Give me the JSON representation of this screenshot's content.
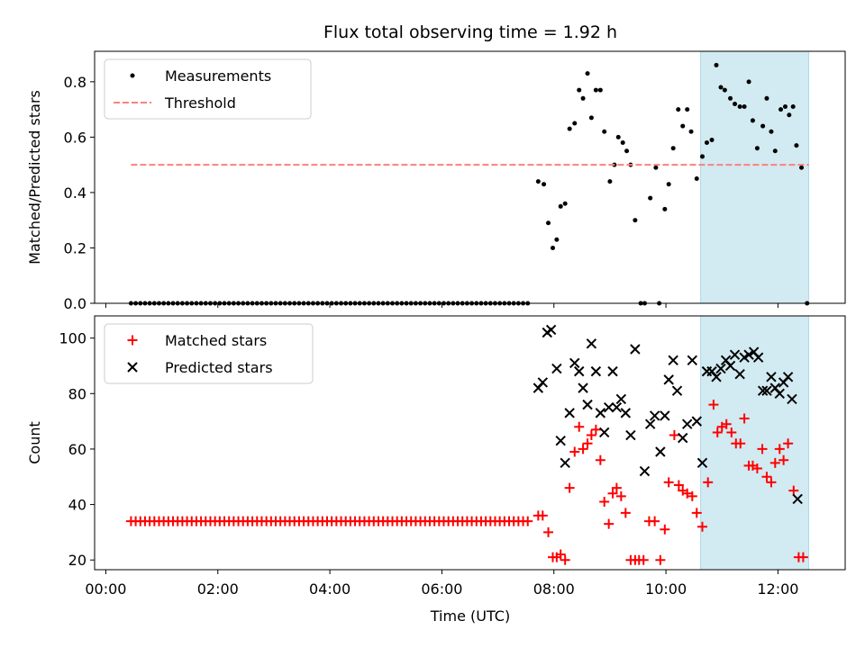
{
  "chart_data": {
    "type": "scatter",
    "title": "Flux total observing time = 1.92 h",
    "xlabel": "Time (UTC)",
    "x_ticks": [
      "00:00",
      "02:00",
      "04:00",
      "06:00",
      "08:00",
      "10:00",
      "12:00"
    ],
    "x_unit": "hours",
    "xlim": [
      -0.2,
      13.2
    ],
    "shaded_interval": {
      "start": 10.62,
      "end": 12.55,
      "color": "#add8e6"
    },
    "panels": [
      {
        "ylabel": "Matched/Predicted stars",
        "ylim": [
          0,
          0.91
        ],
        "y_ticks": [
          "0.0",
          "0.2",
          "0.4",
          "0.6",
          "0.8"
        ],
        "y_tick_values": [
          0,
          0.2,
          0.4,
          0.6,
          0.8
        ],
        "legend": [
          "Measurements",
          "Threshold"
        ],
        "legend_position": "upper-left",
        "series": [
          {
            "name": "Measurements",
            "marker": "dot",
            "color": "#000000",
            "points": [
              [
                7.72,
                0.44
              ],
              [
                7.82,
                0.43
              ],
              [
                7.9,
                0.29
              ],
              [
                7.98,
                0.2
              ],
              [
                8.05,
                0.23
              ],
              [
                8.12,
                0.35
              ],
              [
                8.2,
                0.36
              ],
              [
                8.28,
                0.63
              ],
              [
                8.37,
                0.65
              ],
              [
                8.45,
                0.77
              ],
              [
                8.52,
                0.74
              ],
              [
                8.6,
                0.83
              ],
              [
                8.67,
                0.67
              ],
              [
                8.75,
                0.77
              ],
              [
                8.83,
                0.77
              ],
              [
                8.9,
                0.62
              ],
              [
                9.0,
                0.44
              ],
              [
                9.08,
                0.5
              ],
              [
                9.15,
                0.6
              ],
              [
                9.23,
                0.58
              ],
              [
                9.3,
                0.55
              ],
              [
                9.37,
                0.5
              ],
              [
                9.45,
                0.3
              ],
              [
                9.55,
                0.0
              ],
              [
                9.62,
                0.0
              ],
              [
                9.72,
                0.38
              ],
              [
                9.82,
                0.49
              ],
              [
                9.88,
                0.0
              ],
              [
                9.98,
                0.34
              ],
              [
                10.05,
                0.43
              ],
              [
                10.13,
                0.56
              ],
              [
                10.22,
                0.7
              ],
              [
                10.3,
                0.64
              ],
              [
                10.38,
                0.7
              ],
              [
                10.45,
                0.62
              ],
              [
                10.55,
                0.45
              ],
              [
                10.65,
                0.53
              ],
              [
                10.73,
                0.58
              ],
              [
                10.82,
                0.59
              ],
              [
                10.9,
                0.86
              ],
              [
                10.98,
                0.78
              ],
              [
                11.05,
                0.77
              ],
              [
                11.15,
                0.74
              ],
              [
                11.23,
                0.72
              ],
              [
                11.32,
                0.71
              ],
              [
                11.4,
                0.71
              ],
              [
                11.48,
                0.8
              ],
              [
                11.55,
                0.66
              ],
              [
                11.63,
                0.56
              ],
              [
                11.73,
                0.64
              ],
              [
                11.8,
                0.74
              ],
              [
                11.88,
                0.62
              ],
              [
                11.95,
                0.55
              ],
              [
                12.05,
                0.7
              ],
              [
                12.13,
                0.71
              ],
              [
                12.2,
                0.68
              ],
              [
                12.27,
                0.71
              ],
              [
                12.33,
                0.57
              ],
              [
                12.42,
                0.49
              ],
              [
                12.52,
                0.0
              ]
            ],
            "zero_run": {
              "x_start": 0.45,
              "x_end": 7.6,
              "y": 0.0
            }
          },
          {
            "name": "Threshold",
            "style": "dashed",
            "color": "#ff7f7f",
            "y": 0.5,
            "x_start": 0.45,
            "x_end": 12.55
          }
        ]
      },
      {
        "ylabel": "Count",
        "ylim": [
          16.5,
          108
        ],
        "y_ticks": [
          "20",
          "40",
          "60",
          "80",
          "100"
        ],
        "y_tick_values": [
          20,
          40,
          60,
          80,
          100
        ],
        "legend": [
          "Matched stars",
          "Predicted stars"
        ],
        "legend_position": "upper-left",
        "series": [
          {
            "name": "Matched stars",
            "marker": "plus",
            "color": "#ff0000",
            "constant_run": {
              "x_start": 0.45,
              "x_end": 7.6,
              "y": 34
            },
            "points": [
              [
                7.72,
                36
              ],
              [
                7.8,
                36
              ],
              [
                7.9,
                30
              ],
              [
                7.98,
                21
              ],
              [
                8.05,
                21
              ],
              [
                8.12,
                22
              ],
              [
                8.2,
                20
              ],
              [
                8.28,
                46
              ],
              [
                8.37,
                59
              ],
              [
                8.45,
                68
              ],
              [
                8.52,
                60
              ],
              [
                8.6,
                62
              ],
              [
                8.67,
                65
              ],
              [
                8.75,
                67
              ],
              [
                8.83,
                56
              ],
              [
                8.9,
                41
              ],
              [
                8.98,
                33
              ],
              [
                9.05,
                44
              ],
              [
                9.12,
                46
              ],
              [
                9.2,
                43
              ],
              [
                9.28,
                37
              ],
              [
                9.37,
                20
              ],
              [
                9.45,
                20
              ],
              [
                9.52,
                20
              ],
              [
                9.6,
                20
              ],
              [
                9.7,
                34
              ],
              [
                9.8,
                34
              ],
              [
                9.9,
                20
              ],
              [
                9.98,
                31
              ],
              [
                10.05,
                48
              ],
              [
                10.15,
                65
              ],
              [
                10.23,
                47
              ],
              [
                10.3,
                45
              ],
              [
                10.38,
                44
              ],
              [
                10.47,
                43
              ],
              [
                10.55,
                37
              ],
              [
                10.65,
                32
              ],
              [
                10.75,
                48
              ],
              [
                10.85,
                76
              ],
              [
                10.92,
                66
              ],
              [
                11.0,
                68
              ],
              [
                11.08,
                69
              ],
              [
                11.17,
                66
              ],
              [
                11.25,
                62
              ],
              [
                11.33,
                62
              ],
              [
                11.4,
                71
              ],
              [
                11.48,
                54
              ],
              [
                11.55,
                54
              ],
              [
                11.63,
                53
              ],
              [
                11.72,
                60
              ],
              [
                11.8,
                50
              ],
              [
                11.88,
                48
              ],
              [
                11.95,
                55
              ],
              [
                12.03,
                60
              ],
              [
                12.1,
                56
              ],
              [
                12.18,
                62
              ],
              [
                12.28,
                45
              ],
              [
                12.37,
                21
              ],
              [
                12.45,
                21
              ]
            ]
          },
          {
            "name": "Predicted stars",
            "marker": "x",
            "color": "#000000",
            "points": [
              [
                7.72,
                82
              ],
              [
                7.8,
                84
              ],
              [
                7.88,
                102
              ],
              [
                7.95,
                103
              ],
              [
                8.05,
                89
              ],
              [
                8.12,
                63
              ],
              [
                8.2,
                55
              ],
              [
                8.28,
                73
              ],
              [
                8.37,
                91
              ],
              [
                8.45,
                88
              ],
              [
                8.52,
                82
              ],
              [
                8.6,
                76
              ],
              [
                8.67,
                98
              ],
              [
                8.75,
                88
              ],
              [
                8.83,
                73
              ],
              [
                8.9,
                66
              ],
              [
                8.98,
                75
              ],
              [
                9.05,
                88
              ],
              [
                9.12,
                75
              ],
              [
                9.2,
                78
              ],
              [
                9.28,
                73
              ],
              [
                9.37,
                65
              ],
              [
                9.45,
                96
              ],
              [
                9.62,
                52
              ],
              [
                9.72,
                69
              ],
              [
                9.8,
                72
              ],
              [
                9.9,
                59
              ],
              [
                9.98,
                72
              ],
              [
                10.05,
                85
              ],
              [
                10.13,
                92
              ],
              [
                10.2,
                81
              ],
              [
                10.3,
                64
              ],
              [
                10.38,
                69
              ],
              [
                10.47,
                92
              ],
              [
                10.55,
                70
              ],
              [
                10.65,
                55
              ],
              [
                10.73,
                88
              ],
              [
                10.82,
                88
              ],
              [
                10.9,
                86
              ],
              [
                10.98,
                89
              ],
              [
                11.07,
                92
              ],
              [
                11.15,
                90
              ],
              [
                11.23,
                94
              ],
              [
                11.32,
                87
              ],
              [
                11.4,
                93
              ],
              [
                11.48,
                94
              ],
              [
                11.57,
                95
              ],
              [
                11.65,
                93
              ],
              [
                11.73,
                81
              ],
              [
                11.8,
                81
              ],
              [
                11.88,
                86
              ],
              [
                11.95,
                82
              ],
              [
                12.03,
                80
              ],
              [
                12.1,
                84
              ],
              [
                12.18,
                86
              ],
              [
                12.25,
                78
              ],
              [
                12.35,
                42
              ]
            ]
          }
        ]
      }
    ]
  }
}
